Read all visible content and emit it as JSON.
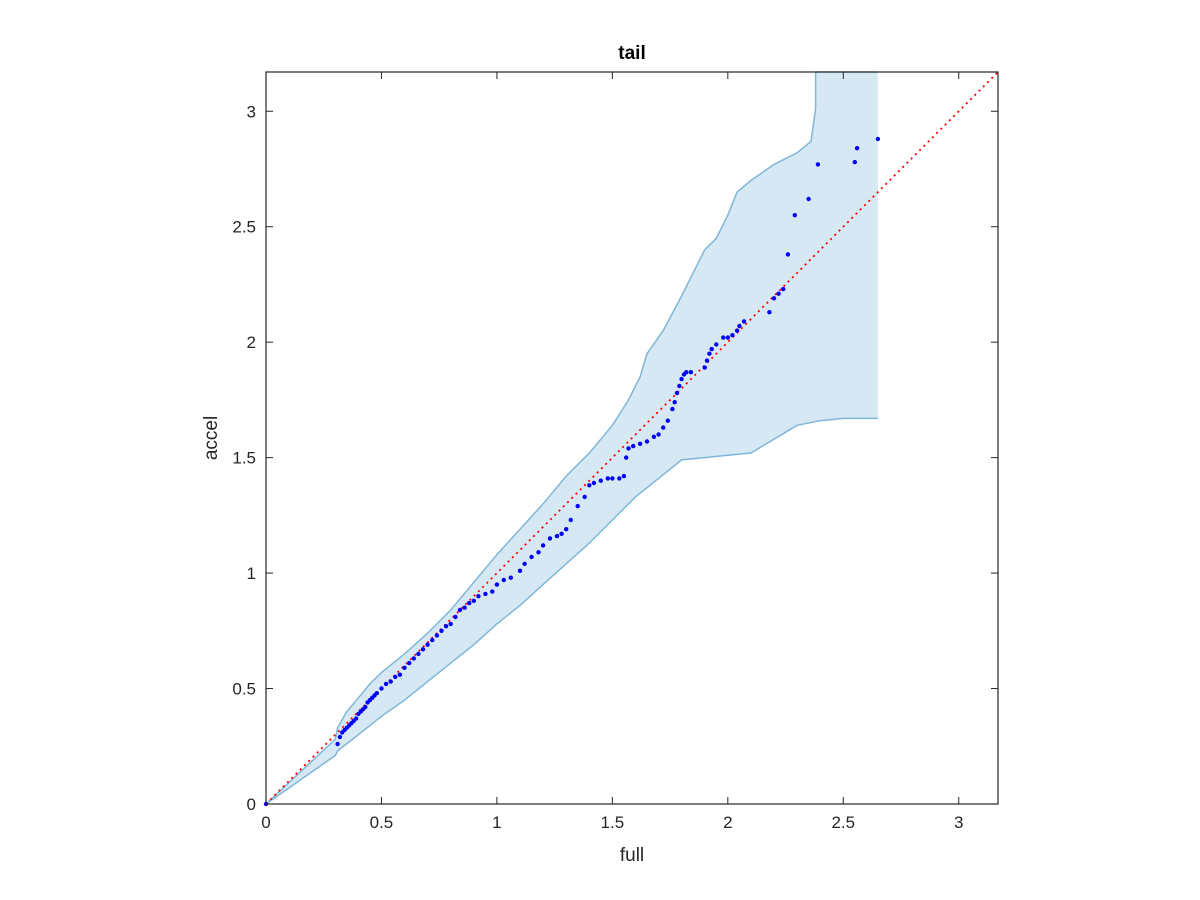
{
  "chart_data": {
    "type": "scatter",
    "title": "tail",
    "xlabel": "full",
    "ylabel": "accel",
    "xlim": [
      0,
      3.17
    ],
    "ylim": [
      0,
      3.17
    ],
    "x_ticks": [
      0,
      0.5,
      1,
      1.5,
      2,
      2.5,
      3
    ],
    "y_ticks": [
      0,
      0.5,
      1,
      1.5,
      2,
      2.5,
      3
    ],
    "x_tick_labels": [
      "0",
      "0.5",
      "1",
      "1.5",
      "2",
      "2.5",
      "3"
    ],
    "y_tick_labels": [
      "0",
      "0.5",
      "1",
      "1.5",
      "2",
      "2.5",
      "3"
    ],
    "grid": false,
    "box": true,
    "colors": {
      "points": "#0000ff",
      "reference": "#ff0000",
      "band_fill": "#d6e8f4",
      "band_edge": "#7fb6d9",
      "axes": "#262626"
    },
    "reference_line": {
      "style": "dotted",
      "from": [
        0,
        0
      ],
      "to": [
        3.17,
        3.17
      ]
    },
    "band": {
      "upper": [
        [
          0,
          0
        ],
        [
          0.3,
          0.28
        ],
        [
          0.31,
          0.33
        ],
        [
          0.35,
          0.4
        ],
        [
          0.4,
          0.46
        ],
        [
          0.45,
          0.52
        ],
        [
          0.5,
          0.57
        ],
        [
          0.6,
          0.65
        ],
        [
          0.7,
          0.74
        ],
        [
          0.8,
          0.84
        ],
        [
          0.9,
          0.96
        ],
        [
          1.0,
          1.08
        ],
        [
          1.1,
          1.19
        ],
        [
          1.2,
          1.3
        ],
        [
          1.3,
          1.42
        ],
        [
          1.4,
          1.52
        ],
        [
          1.5,
          1.64
        ],
        [
          1.57,
          1.75
        ],
        [
          1.62,
          1.85
        ],
        [
          1.65,
          1.95
        ],
        [
          1.72,
          2.05
        ],
        [
          1.8,
          2.2
        ],
        [
          1.9,
          2.4
        ],
        [
          1.95,
          2.45
        ],
        [
          2.0,
          2.55
        ],
        [
          2.04,
          2.65
        ],
        [
          2.1,
          2.7
        ],
        [
          2.2,
          2.77
        ],
        [
          2.3,
          2.82
        ],
        [
          2.36,
          2.87
        ],
        [
          2.38,
          3.01
        ],
        [
          2.38,
          3.17
        ],
        [
          2.65,
          3.17
        ]
      ],
      "lower": [
        [
          0,
          0
        ],
        [
          0.3,
          0.21
        ],
        [
          0.31,
          0.23
        ],
        [
          0.4,
          0.3
        ],
        [
          0.5,
          0.38
        ],
        [
          0.6,
          0.45
        ],
        [
          0.7,
          0.53
        ],
        [
          0.8,
          0.61
        ],
        [
          0.9,
          0.69
        ],
        [
          1.0,
          0.78
        ],
        [
          1.1,
          0.86
        ],
        [
          1.2,
          0.95
        ],
        [
          1.3,
          1.04
        ],
        [
          1.4,
          1.13
        ],
        [
          1.5,
          1.23
        ],
        [
          1.6,
          1.33
        ],
        [
          1.7,
          1.41
        ],
        [
          1.8,
          1.49
        ],
        [
          1.9,
          1.5
        ],
        [
          2.0,
          1.51
        ],
        [
          2.1,
          1.52
        ],
        [
          2.2,
          1.58
        ],
        [
          2.3,
          1.64
        ],
        [
          2.4,
          1.66
        ],
        [
          2.5,
          1.67
        ],
        [
          2.65,
          1.67
        ]
      ]
    },
    "series": [
      {
        "x": [
          0,
          0.31,
          0.32,
          0.33,
          0.34,
          0.35,
          0.36,
          0.37,
          0.38,
          0.39,
          0.4,
          0.41,
          0.42,
          0.43,
          0.44,
          0.45,
          0.46,
          0.47,
          0.48,
          0.5,
          0.52,
          0.54,
          0.56,
          0.58,
          0.6,
          0.62,
          0.64,
          0.66,
          0.68,
          0.7,
          0.72,
          0.74,
          0.76,
          0.78,
          0.8,
          0.82,
          0.84,
          0.86,
          0.88,
          0.9,
          0.92,
          0.95,
          0.98,
          1.0,
          1.03,
          1.06,
          1.1,
          1.12,
          1.15,
          1.18,
          1.2,
          1.23,
          1.26,
          1.28,
          1.3,
          1.32,
          1.35,
          1.38,
          1.4,
          1.42,
          1.45,
          1.48,
          1.5,
          1.53,
          1.55,
          1.56,
          1.57,
          1.59,
          1.62,
          1.65,
          1.68,
          1.7,
          1.72,
          1.74,
          1.76,
          1.77,
          1.78,
          1.79,
          1.8,
          1.81,
          1.82,
          1.84,
          1.9,
          1.91,
          1.92,
          1.93,
          1.95,
          1.98,
          2.0,
          2.02,
          2.04,
          2.05,
          2.07,
          2.18,
          2.2,
          2.22,
          2.24,
          2.26,
          2.29,
          2.35,
          2.39,
          2.55,
          2.56,
          2.65
        ],
        "y": [
          0,
          0.26,
          0.29,
          0.31,
          0.32,
          0.33,
          0.34,
          0.35,
          0.36,
          0.37,
          0.39,
          0.4,
          0.41,
          0.42,
          0.44,
          0.45,
          0.46,
          0.47,
          0.48,
          0.5,
          0.52,
          0.53,
          0.55,
          0.56,
          0.59,
          0.61,
          0.63,
          0.65,
          0.67,
          0.69,
          0.71,
          0.73,
          0.75,
          0.77,
          0.78,
          0.81,
          0.84,
          0.85,
          0.87,
          0.88,
          0.9,
          0.91,
          0.92,
          0.95,
          0.97,
          0.98,
          1.01,
          1.04,
          1.07,
          1.09,
          1.12,
          1.15,
          1.16,
          1.17,
          1.19,
          1.23,
          1.29,
          1.33,
          1.38,
          1.39,
          1.4,
          1.41,
          1.41,
          1.41,
          1.42,
          1.5,
          1.54,
          1.55,
          1.56,
          1.57,
          1.59,
          1.6,
          1.63,
          1.66,
          1.71,
          1.74,
          1.78,
          1.81,
          1.84,
          1.86,
          1.87,
          1.87,
          1.89,
          1.92,
          1.95,
          1.97,
          1.99,
          2.02,
          2.02,
          2.03,
          2.05,
          2.07,
          2.09,
          2.13,
          2.19,
          2.21,
          2.23,
          2.38,
          2.55,
          2.62,
          2.77,
          2.78,
          2.84,
          2.88
        ]
      }
    ]
  }
}
